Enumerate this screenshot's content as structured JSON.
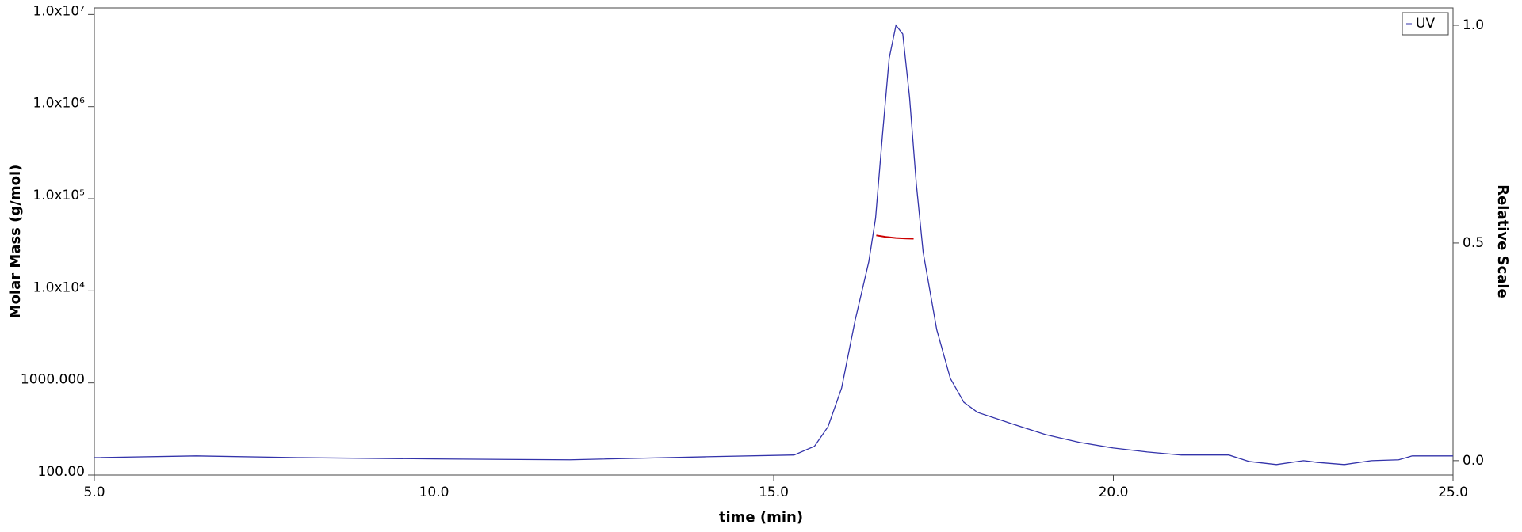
{
  "chart_data": {
    "type": "line",
    "xlabel": "time (min)",
    "ylabel": "Molar Mass (g/mol)",
    "y2label": "Relative Scale",
    "xlim": [
      5,
      25
    ],
    "xticks": [
      {
        "value": 5,
        "label": "5.0"
      },
      {
        "value": 10,
        "label": "10.0"
      },
      {
        "value": 15,
        "label": "15.0"
      },
      {
        "value": 20,
        "label": "20.0"
      },
      {
        "value": 25,
        "label": "25.0"
      }
    ],
    "ylog": true,
    "ylim": [
      100,
      11800000
    ],
    "yticks": [
      {
        "value": 100,
        "label": "100.00"
      },
      {
        "value": 1000,
        "label": "1000.000"
      },
      {
        "value": 10000,
        "label": "1.0x10⁴"
      },
      {
        "value": 100000,
        "label": "1.0x10⁵"
      },
      {
        "value": 1000000,
        "label": "1.0x10⁶"
      },
      {
        "value": 10000000,
        "label": "1.0x10⁷"
      }
    ],
    "y2lim": [
      -0.033,
      1.04
    ],
    "y2ticks": [
      {
        "value": 0,
        "label": "0.0"
      },
      {
        "value": 0.5,
        "label": "0.5"
      },
      {
        "value": 1,
        "label": "1.0"
      }
    ],
    "legend": "top-right",
    "series": [
      {
        "color": "#cc0000",
        "x": [
          16.51,
          16.65,
          16.8,
          16.95,
          17.06
        ],
        "values": [
          40000,
          38500,
          37500,
          37000,
          36800
        ]
      },
      {
        "name": "UV",
        "color": "#3333aa",
        "axis": "y2",
        "x": [
          5.0,
          6.5,
          8,
          10,
          12,
          14,
          15.3,
          15.6,
          15.8,
          16.0,
          16.2,
          16.4,
          16.5,
          16.6,
          16.7,
          16.8,
          16.9,
          17.0,
          17.1,
          17.2,
          17.4,
          17.6,
          17.8,
          18.0,
          18.5,
          19.0,
          19.5,
          20.0,
          20.5,
          21.0,
          21.7,
          22.0,
          22.4,
          22.8,
          23.0,
          23.4,
          23.8,
          24.2,
          24.4,
          25.0
        ],
        "values": [
          0.007,
          0.011,
          0.007,
          0.004,
          0.002,
          0.009,
          0.013,
          0.033,
          0.078,
          0.167,
          0.323,
          0.457,
          0.557,
          0.746,
          0.924,
          1.0,
          0.98,
          0.835,
          0.635,
          0.479,
          0.301,
          0.189,
          0.134,
          0.111,
          0.085,
          0.06,
          0.042,
          0.029,
          0.02,
          0.013,
          0.013,
          -0.002,
          -0.009,
          0,
          -0.004,
          -0.009,
          0,
          0.002,
          0.011,
          0.011
        ]
      }
    ]
  }
}
